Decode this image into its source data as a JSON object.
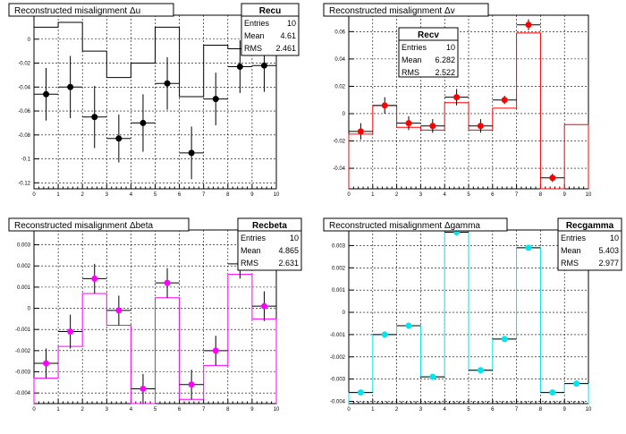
{
  "chart_data": [
    {
      "id": "u",
      "type": "scatter",
      "title": "Reconstructed misalignment Δu",
      "xlim": [
        0,
        10
      ],
      "ylim": [
        -0.125,
        0.02
      ],
      "xticks": [
        0,
        1,
        2,
        3,
        4,
        5,
        6,
        7,
        8,
        9,
        10
      ],
      "yticks": [
        0,
        -0.02,
        -0.04,
        -0.06,
        -0.08,
        -0.1,
        -0.12
      ],
      "ytick_labels": [
        "0",
        "-0.02",
        "-0.04",
        "-0.06",
        "-0.08",
        "-0.1",
        "-0.12"
      ],
      "grid": true,
      "color": "#000000",
      "x": [
        0.5,
        1.5,
        2.5,
        3.5,
        4.5,
        5.5,
        6.5,
        7.5,
        8.5,
        9.5
      ],
      "values": [
        -0.046,
        -0.04,
        -0.065,
        -0.083,
        -0.07,
        -0.037,
        -0.095,
        -0.05,
        -0.023,
        -0.022
      ],
      "errors": [
        0.022,
        0.026,
        0.026,
        0.02,
        0.024,
        0.022,
        0.022,
        0.022,
        0.022,
        0.022
      ],
      "hist_values": [
        0.01,
        0.014,
        -0.01,
        -0.032,
        -0.02,
        0.01,
        -0.048,
        -0.005,
        -0.008,
        0.008
      ],
      "stats": {
        "name": "Recu",
        "entries_label": "Entries",
        "entries": "10",
        "mean_label": "Mean",
        "mean": "4.61",
        "rms_label": "RMS",
        "rms": "2.461"
      }
    },
    {
      "id": "v",
      "type": "scatter",
      "title": "Reconstructed misalignment Δv",
      "xlim": [
        0,
        10
      ],
      "ylim": [
        -0.055,
        0.072
      ],
      "xticks": [
        0,
        1,
        2,
        3,
        4,
        5,
        6,
        7,
        8,
        9,
        10
      ],
      "yticks": [
        0.06,
        0.04,
        0.02,
        0,
        -0.02,
        -0.04
      ],
      "ytick_labels": [
        "0.06",
        "0.04",
        "0.02",
        "0",
        "-0.02",
        "-0.04"
      ],
      "grid": true,
      "color": "#ff0000",
      "x": [
        0.5,
        1.5,
        2.5,
        3.5,
        4.5,
        5.5,
        6.5,
        7.5,
        8.5,
        9.5
      ],
      "values": [
        -0.013,
        0.006,
        -0.007,
        -0.009,
        0.012,
        -0.009,
        0.01,
        0.065,
        -0.047,
        null
      ],
      "errors": [
        0.006,
        0.006,
        0.005,
        0.005,
        0.006,
        0.005,
        0.003,
        0.004,
        0.003,
        0
      ],
      "hist_values": [
        -0.015,
        0.006,
        -0.01,
        -0.012,
        0.008,
        -0.012,
        0.004,
        0.059,
        -0.055,
        -0.008
      ],
      "stats": {
        "name": "Recv",
        "entries_label": "Entries",
        "entries": "10",
        "mean_label": "Mean",
        "mean": "6.282",
        "rms_label": "RMS",
        "rms": "2.522"
      }
    },
    {
      "id": "beta",
      "type": "scatter",
      "title": "Reconstructed misalignment Δbeta",
      "xlim": [
        0,
        10
      ],
      "ylim": [
        -0.0045,
        0.0037
      ],
      "xticks": [
        0,
        1,
        2,
        3,
        4,
        5,
        6,
        7,
        8,
        9,
        10
      ],
      "yticks": [
        0.003,
        0.002,
        0.001,
        0,
        -0.001,
        -0.002,
        -0.003,
        -0.004
      ],
      "ytick_labels": [
        "0.003",
        "0.002",
        "0.001",
        "0",
        "-0.001",
        "-0.002",
        "-0.003",
        "-0.004"
      ],
      "grid": true,
      "color": "#ff00ff",
      "x": [
        0.5,
        1.5,
        2.5,
        3.5,
        4.5,
        5.5,
        6.5,
        7.5,
        8.5,
        9.5
      ],
      "values": [
        -0.0026,
        -0.0011,
        0.0014,
        -0.0001,
        -0.0038,
        0.0012,
        -0.0036,
        -0.002,
        0.0021,
        0.0001
      ],
      "errors": [
        0.0007,
        0.0008,
        0.0007,
        0.0007,
        0.0007,
        0.0007,
        0.0007,
        0.0007,
        0.0007,
        0.0007
      ],
      "hist_values": [
        -0.0033,
        -0.0018,
        0.0007,
        -0.0008,
        -0.0045,
        0.0005,
        -0.0043,
        -0.0027,
        0.0016,
        -0.0005
      ],
      "stats": {
        "name": "Recbeta",
        "entries_label": "Entries",
        "entries": "10",
        "mean_label": "Mean",
        "mean": "4.865",
        "rms_label": "RMS",
        "rms": "2.631"
      }
    },
    {
      "id": "gamma",
      "type": "scatter",
      "title": "Reconstructed misalignment Δgamma",
      "xlim": [
        0,
        10
      ],
      "ylim": [
        -0.0041,
        0.0037
      ],
      "xticks": [
        0,
        1,
        2,
        3,
        4,
        5,
        6,
        7,
        8,
        9,
        10
      ],
      "yticks": [
        0.003,
        0.002,
        0.001,
        0,
        -0.001,
        -0.002,
        -0.003,
        -0.004
      ],
      "ytick_labels": [
        "0.003",
        "0.002",
        "0.001",
        "0",
        "-0.001",
        "-0.002",
        "-0.003",
        "-0.004"
      ],
      "grid": true,
      "color": "#00e5ee",
      "x": [
        0.5,
        1.5,
        2.5,
        3.5,
        4.5,
        5.5,
        6.5,
        7.5,
        8.5,
        9.5
      ],
      "values": [
        -0.0036,
        -0.001,
        -0.0006,
        -0.0029,
        0.0036,
        -0.0026,
        -0.0012,
        0.0029,
        -0.0036,
        -0.0032
      ],
      "errors": [
        0,
        0,
        0,
        0,
        0,
        0,
        0,
        0,
        0,
        0
      ],
      "hist_values": [
        -0.0036,
        -0.001,
        -0.0006,
        -0.0029,
        0.0036,
        -0.0026,
        -0.0012,
        0.0029,
        -0.0036,
        -0.0032
      ],
      "stats": {
        "name": "Recgamma",
        "entries_label": "Entries",
        "entries": "10",
        "mean_label": "Mean",
        "mean": "5.403",
        "rms_label": "RMS",
        "rms": "2.977"
      }
    }
  ]
}
